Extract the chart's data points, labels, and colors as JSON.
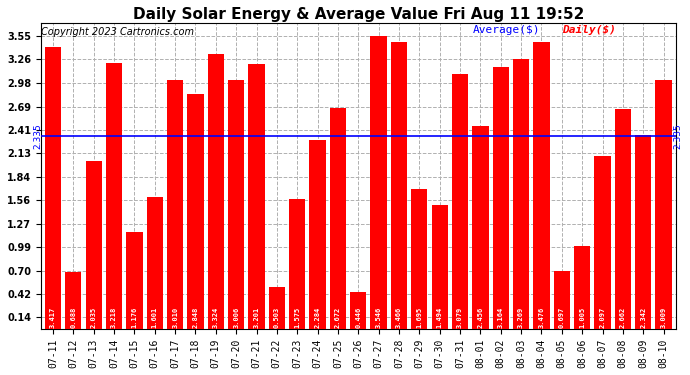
{
  "title": "Daily Solar Energy & Average Value Fri Aug 11 19:52",
  "copyright": "Copyright 2023 Cartronics.com",
  "categories": [
    "07-11",
    "07-12",
    "07-13",
    "07-14",
    "07-15",
    "07-16",
    "07-17",
    "07-18",
    "07-19",
    "07-20",
    "07-21",
    "07-22",
    "07-23",
    "07-24",
    "07-25",
    "07-26",
    "07-27",
    "07-28",
    "07-29",
    "07-30",
    "07-31",
    "08-01",
    "08-02",
    "08-03",
    "08-04",
    "08-05",
    "08-06",
    "08-07",
    "08-08",
    "08-09",
    "08-10"
  ],
  "values": [
    3.417,
    0.688,
    2.035,
    3.218,
    1.176,
    1.601,
    3.01,
    2.848,
    3.324,
    3.006,
    3.201,
    0.503,
    1.575,
    2.284,
    2.672,
    0.446,
    3.546,
    3.466,
    1.695,
    1.494,
    3.079,
    2.456,
    3.164,
    3.269,
    3.476,
    0.697,
    1.005,
    2.097,
    2.662,
    2.342,
    3.009
  ],
  "average": 2.335,
  "bar_color": "#ff0000",
  "average_line_color": "#0000ff",
  "background_color": "#ffffff",
  "grid_color": "#b0b0b0",
  "yticks": [
    0.14,
    0.42,
    0.7,
    0.99,
    1.27,
    1.56,
    1.84,
    2.13,
    2.41,
    2.69,
    2.98,
    3.26,
    3.55
  ],
  "ylim_min": 0.0,
  "ylim_max": 3.7,
  "title_fontsize": 11,
  "copyright_fontsize": 7,
  "tick_fontsize": 7,
  "bar_label_fontsize": 5,
  "legend_avg_label": "Average($)",
  "legend_daily_label": "Daily($)",
  "legend_avg_color": "#0000ff",
  "legend_daily_color": "#ff0000",
  "avg_annotation": "2.335"
}
